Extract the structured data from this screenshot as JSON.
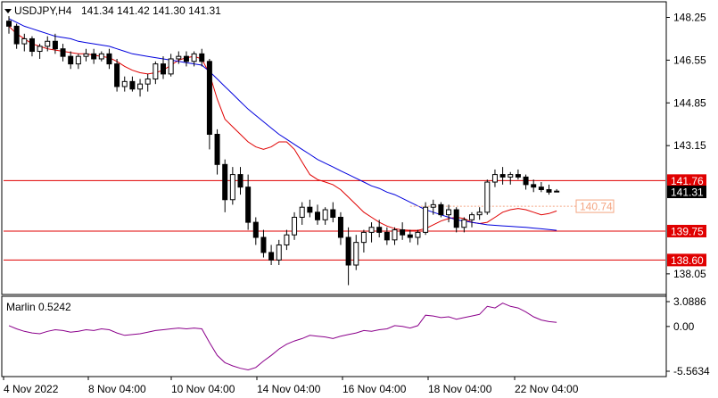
{
  "chart_data": {
    "type": "candlestick",
    "symbol_label": "USDJPY,H4",
    "ohlc_label": "141.34 141.42 141.30 141.31",
    "price_axis": {
      "range": [
        137.3,
        148.8
      ],
      "ticks": [
        "148.25",
        "146.55",
        "144.85",
        "143.15",
        "138.05"
      ]
    },
    "levels": [
      {
        "value": 141.76,
        "label": "141.76",
        "color": "#e00000"
      },
      {
        "value": 139.75,
        "label": "139.75",
        "color": "#e00000"
      },
      {
        "value": 138.6,
        "label": "138.60",
        "color": "#e00000"
      }
    ],
    "current_price": {
      "value": 141.31,
      "label": "141.31"
    },
    "projection": {
      "value": 140.74,
      "label": "140.74",
      "color": "#f4a582"
    },
    "time_axis_labels": [
      "4 Nov 2022",
      "8 Nov 04:00",
      "10 Nov 04:00",
      "14 Nov 04:00",
      "16 Nov 04:00",
      "18 Nov 04:00",
      "22 Nov 04:00"
    ],
    "candles": [
      [
        148.1,
        148.3,
        147.6,
        147.9
      ],
      [
        147.9,
        148.0,
        147.0,
        147.2
      ],
      [
        147.2,
        147.6,
        146.9,
        147.4
      ],
      [
        147.4,
        147.5,
        146.7,
        146.9
      ],
      [
        146.9,
        147.2,
        146.6,
        147.1
      ],
      [
        147.1,
        147.5,
        146.9,
        147.3
      ],
      [
        147.3,
        147.6,
        146.8,
        147.0
      ],
      [
        147.0,
        147.2,
        146.5,
        146.7
      ],
      [
        146.7,
        146.9,
        146.2,
        146.4
      ],
      [
        146.4,
        146.8,
        146.2,
        146.7
      ],
      [
        146.7,
        147.0,
        146.5,
        146.8
      ],
      [
        146.8,
        147.0,
        146.4,
        146.6
      ],
      [
        146.6,
        146.9,
        146.5,
        146.8
      ],
      [
        146.8,
        147.0,
        146.2,
        146.4
      ],
      [
        146.4,
        146.6,
        145.3,
        145.5
      ],
      [
        145.5,
        145.9,
        145.3,
        145.7
      ],
      [
        145.7,
        145.9,
        145.3,
        145.4
      ],
      [
        145.4,
        145.8,
        145.1,
        145.6
      ],
      [
        145.6,
        146.0,
        145.3,
        145.8
      ],
      [
        145.8,
        146.5,
        145.6,
        146.4
      ],
      [
        146.4,
        146.7,
        145.8,
        146.0
      ],
      [
        146.0,
        146.8,
        145.9,
        146.6
      ],
      [
        146.6,
        146.9,
        146.4,
        146.7
      ],
      [
        146.7,
        146.9,
        146.3,
        146.5
      ],
      [
        146.5,
        146.9,
        146.3,
        146.8
      ],
      [
        146.8,
        147.0,
        146.3,
        146.5
      ],
      [
        146.5,
        146.6,
        143.0,
        143.6
      ],
      [
        143.6,
        143.8,
        142.0,
        142.4
      ],
      [
        142.4,
        142.6,
        140.5,
        141.0
      ],
      [
        141.0,
        142.3,
        140.8,
        142.0
      ],
      [
        142.0,
        142.3,
        141.2,
        141.5
      ],
      [
        141.5,
        142.0,
        139.8,
        140.1
      ],
      [
        140.1,
        140.3,
        139.2,
        139.5
      ],
      [
        139.5,
        139.8,
        138.7,
        138.9
      ],
      [
        138.9,
        139.2,
        138.4,
        138.6
      ],
      [
        138.6,
        139.4,
        138.4,
        139.2
      ],
      [
        139.2,
        139.8,
        139.0,
        139.6
      ],
      [
        139.6,
        140.5,
        139.4,
        140.3
      ],
      [
        140.3,
        140.9,
        140.0,
        140.7
      ],
      [
        140.7,
        141.0,
        140.3,
        140.5
      ],
      [
        140.5,
        140.8,
        140.0,
        140.2
      ],
      [
        140.2,
        140.7,
        140.0,
        140.6
      ],
      [
        140.6,
        140.9,
        140.1,
        140.3
      ],
      [
        140.3,
        140.5,
        139.2,
        139.5
      ],
      [
        139.5,
        139.9,
        137.6,
        138.4
      ],
      [
        138.4,
        139.6,
        138.2,
        139.3
      ],
      [
        139.3,
        139.8,
        138.9,
        139.7
      ],
      [
        139.7,
        140.1,
        139.3,
        139.9
      ],
      [
        139.9,
        140.2,
        139.5,
        139.7
      ],
      [
        139.7,
        139.9,
        139.2,
        139.4
      ],
      [
        139.4,
        139.9,
        139.2,
        139.8
      ],
      [
        139.8,
        140.1,
        139.4,
        139.6
      ],
      [
        139.6,
        139.8,
        139.3,
        139.5
      ],
      [
        139.5,
        139.8,
        139.2,
        139.7
      ],
      [
        139.7,
        140.9,
        139.6,
        140.7
      ],
      [
        140.7,
        141.0,
        140.4,
        140.8
      ],
      [
        140.8,
        140.9,
        140.3,
        140.4
      ],
      [
        140.4,
        140.8,
        140.1,
        140.6
      ],
      [
        140.6,
        140.7,
        139.7,
        139.9
      ],
      [
        139.9,
        140.3,
        139.7,
        140.2
      ],
      [
        140.2,
        140.5,
        139.9,
        140.4
      ],
      [
        140.4,
        140.7,
        140.2,
        140.5
      ],
      [
        140.5,
        141.8,
        140.4,
        141.7
      ],
      [
        141.7,
        142.2,
        141.5,
        142.0
      ],
      [
        142.0,
        142.3,
        141.6,
        141.9
      ],
      [
        141.9,
        142.1,
        141.6,
        142.0
      ],
      [
        142.0,
        142.2,
        141.8,
        141.9
      ],
      [
        141.9,
        142.0,
        141.4,
        141.6
      ],
      [
        141.6,
        141.8,
        141.3,
        141.5
      ],
      [
        141.5,
        141.7,
        141.3,
        141.4
      ],
      [
        141.4,
        141.6,
        141.2,
        141.3
      ],
      [
        141.34,
        141.42,
        141.3,
        141.31
      ]
    ],
    "ma_red": [
      147.9,
      147.6,
      147.4,
      147.2,
      147.1,
      147.0,
      146.95,
      146.9,
      146.85,
      146.8,
      146.8,
      146.75,
      146.7,
      146.65,
      146.5,
      146.3,
      146.15,
      146.05,
      146.0,
      146.05,
      146.15,
      146.35,
      146.55,
      146.65,
      146.7,
      146.6,
      146.0,
      145.0,
      144.2,
      143.9,
      143.6,
      143.3,
      143.1,
      143.0,
      143.1,
      143.3,
      143.3,
      143.0,
      142.5,
      142.0,
      141.8,
      141.7,
      141.6,
      141.4,
      141.1,
      140.8,
      140.5,
      140.3,
      140.1,
      139.95,
      139.85,
      139.8,
      139.78,
      139.78,
      139.85,
      140.0,
      140.15,
      140.25,
      140.3,
      140.25,
      140.1,
      140.05,
      140.1,
      140.3,
      140.5,
      140.6,
      140.65,
      140.6,
      140.5,
      140.4,
      140.45,
      140.55
    ],
    "ma_blue": [
      148.2,
      148.05,
      147.9,
      147.8,
      147.7,
      147.6,
      147.5,
      147.45,
      147.4,
      147.3,
      147.25,
      147.2,
      147.15,
      147.1,
      147.0,
      146.9,
      146.8,
      146.75,
      146.7,
      146.65,
      146.6,
      146.55,
      146.5,
      146.45,
      146.4,
      146.35,
      146.1,
      145.8,
      145.5,
      145.2,
      144.9,
      144.6,
      144.35,
      144.1,
      143.85,
      143.6,
      143.4,
      143.2,
      143.0,
      142.8,
      142.6,
      142.45,
      142.3,
      142.15,
      142.0,
      141.85,
      141.7,
      141.55,
      141.45,
      141.3,
      141.2,
      141.05,
      140.9,
      140.75,
      140.6,
      140.5,
      140.4,
      140.3,
      140.2,
      140.15,
      140.1,
      140.05,
      140.0,
      139.98,
      139.96,
      139.94,
      139.92,
      139.9,
      139.87,
      139.84,
      139.81,
      139.78
    ],
    "oscillator": {
      "label": "Marlin 0.5242",
      "range": [
        -5.5634,
        3.0886
      ],
      "ticks": [
        "3.0886",
        "0.00",
        "-5.5634"
      ],
      "values": [
        0.1,
        -0.3,
        -0.6,
        -0.8,
        -0.9,
        -0.6,
        -0.4,
        -0.5,
        -0.7,
        -0.6,
        -0.4,
        -0.5,
        -0.3,
        -0.4,
        -0.8,
        -1.1,
        -1.0,
        -0.9,
        -0.7,
        -0.5,
        -0.4,
        -0.3,
        -0.2,
        -0.3,
        -0.2,
        -0.3,
        -2.0,
        -3.6,
        -4.5,
        -4.9,
        -5.2,
        -5.4,
        -5.1,
        -4.3,
        -3.6,
        -2.8,
        -2.2,
        -1.8,
        -1.5,
        -1.1,
        -1.2,
        -1.3,
        -1.5,
        -1.2,
        -1.0,
        -0.8,
        -0.5,
        -0.6,
        -0.4,
        -0.3,
        0.1,
        0.0,
        -0.2,
        0.1,
        1.4,
        1.3,
        1.1,
        1.2,
        0.9,
        1.1,
        1.3,
        1.5,
        2.5,
        2.3,
        2.9,
        2.5,
        2.3,
        1.8,
        1.2,
        0.8,
        0.6,
        0.5
      ]
    }
  },
  "colors": {
    "candle": "#000000",
    "level_line": "#e00000",
    "ma_red": "#e00000",
    "ma_blue": "#0000dd",
    "oscillator": "#8b008b",
    "current_price_bg": "#000000"
  }
}
